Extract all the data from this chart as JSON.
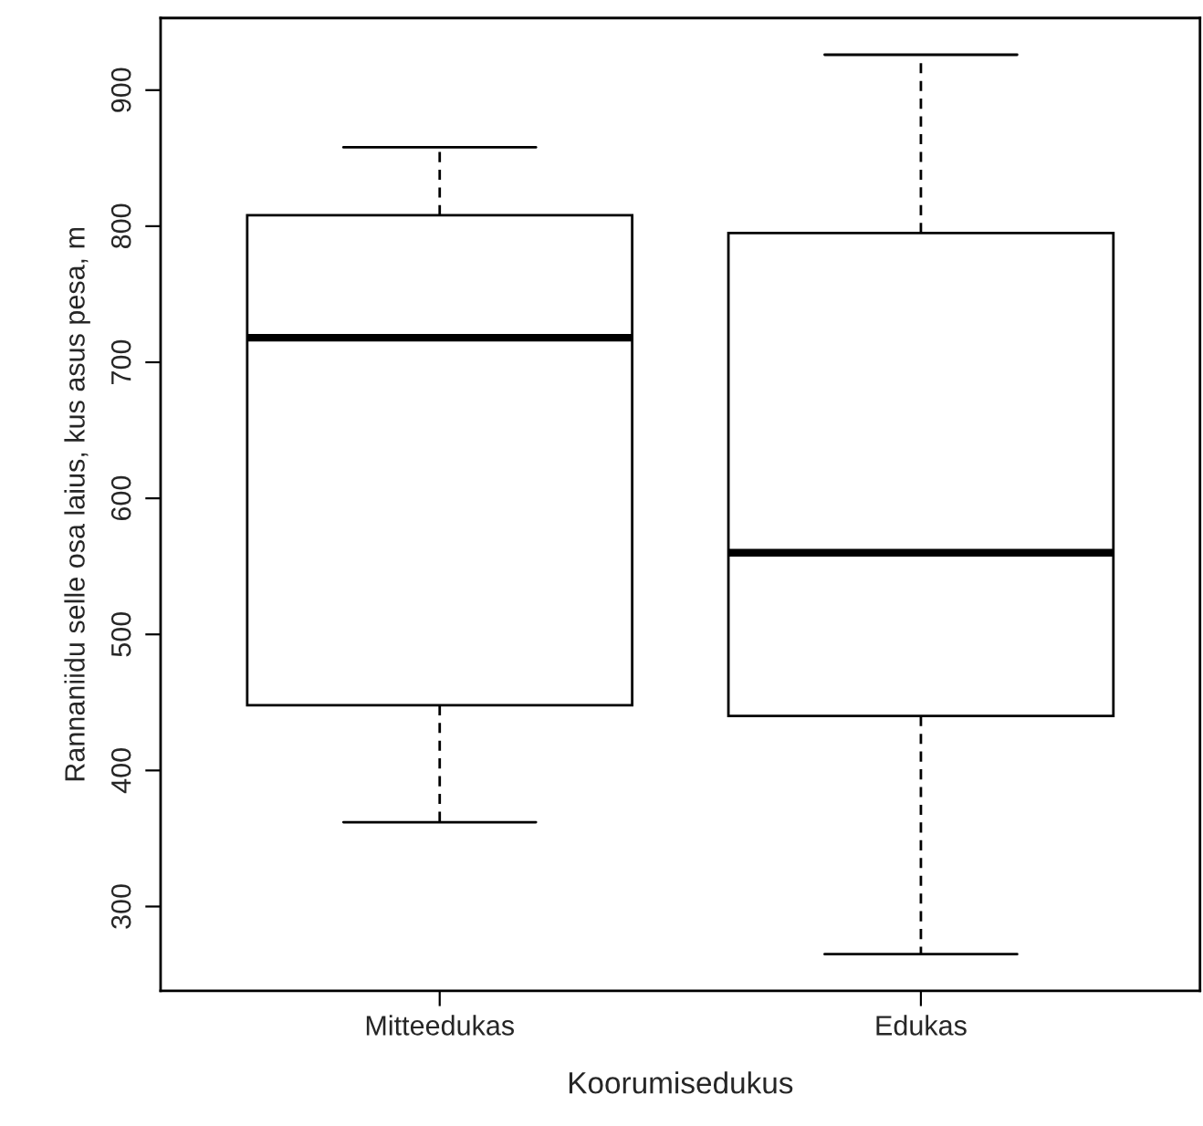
{
  "chart_data": {
    "type": "box",
    "xlabel": "Koorumisedukus",
    "ylabel": "Rannaniidu selle osa laius, kus asus pesa, m",
    "categories": [
      "Mitteedukas",
      "Edukas"
    ],
    "boxes": [
      {
        "low": 362,
        "q1": 448,
        "median": 718,
        "q3": 808,
        "high": 858
      },
      {
        "low": 265,
        "q1": 440,
        "median": 560,
        "q3": 795,
        "high": 926
      }
    ],
    "ylim": [
      238,
      953
    ],
    "yticks": [
      300,
      400,
      500,
      600,
      700,
      800,
      900
    ],
    "grid": false,
    "legend": false
  }
}
